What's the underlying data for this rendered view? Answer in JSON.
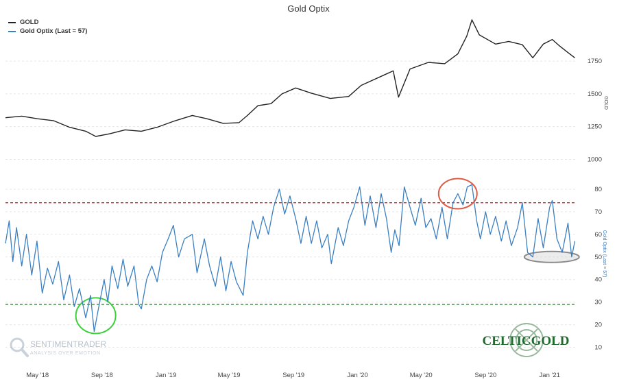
{
  "chart_data": {
    "type": "line",
    "title": "Gold Optix",
    "legend": [
      {
        "name": "GOLD",
        "color": "#222222"
      },
      {
        "name": "Gold Optix (Last = 57)",
        "color": "#3a7fc1"
      }
    ],
    "x_ticks": [
      "May '18",
      "Sep '18",
      "Jan '19",
      "May '19",
      "Sep '19",
      "Jan '20",
      "May '20",
      "Sep '20",
      "Jan '21"
    ],
    "x_range": [
      "2018-03-01",
      "2021-02-20"
    ],
    "panels": [
      {
        "name": "GOLD",
        "axis_title": "GOLD",
        "y_ticks": [
          1000,
          1250,
          1500,
          1750
        ],
        "ylim": [
          950,
          1850
        ],
        "series": {
          "name": "GOLD",
          "color": "#222222",
          "points": [
            [
              "2018-03-01",
              1318
            ],
            [
              "2018-04-01",
              1330
            ],
            [
              "2018-05-01",
              1310
            ],
            [
              "2018-06-01",
              1295
            ],
            [
              "2018-07-01",
              1245
            ],
            [
              "2018-08-01",
              1215
            ],
            [
              "2018-08-20",
              1175
            ],
            [
              "2018-09-15",
              1195
            ],
            [
              "2018-10-15",
              1225
            ],
            [
              "2018-11-15",
              1215
            ],
            [
              "2018-12-15",
              1245
            ],
            [
              "2019-01-15",
              1290
            ],
            [
              "2019-02-20",
              1335
            ],
            [
              "2019-03-20",
              1310
            ],
            [
              "2019-04-20",
              1275
            ],
            [
              "2019-05-20",
              1280
            ],
            [
              "2019-06-05",
              1335
            ],
            [
              "2019-06-25",
              1410
            ],
            [
              "2019-07-20",
              1425
            ],
            [
              "2019-08-10",
              1500
            ],
            [
              "2019-09-05",
              1545
            ],
            [
              "2019-10-05",
              1505
            ],
            [
              "2019-11-10",
              1465
            ],
            [
              "2019-12-15",
              1480
            ],
            [
              "2020-01-08",
              1565
            ],
            [
              "2020-02-24",
              1650
            ],
            [
              "2020-03-09",
              1675
            ],
            [
              "2020-03-19",
              1475
            ],
            [
              "2020-04-10",
              1690
            ],
            [
              "2020-05-15",
              1740
            ],
            [
              "2020-06-15",
              1730
            ],
            [
              "2020-07-10",
              1805
            ],
            [
              "2020-07-27",
              1940
            ],
            [
              "2020-08-06",
              2065
            ],
            [
              "2020-08-20",
              1950
            ],
            [
              "2020-09-20",
              1880
            ],
            [
              "2020-10-15",
              1900
            ],
            [
              "2020-11-10",
              1875
            ],
            [
              "2020-11-30",
              1775
            ],
            [
              "2020-12-20",
              1880
            ],
            [
              "2021-01-06",
              1915
            ],
            [
              "2021-01-20",
              1865
            ],
            [
              "2021-02-05",
              1815
            ],
            [
              "2021-02-18",
              1775
            ]
          ]
        }
      },
      {
        "name": "Gold Optix",
        "axis_title": "Gold Optix (Last = 57)",
        "y_ticks": [
          10,
          20,
          30,
          40,
          50,
          60,
          70,
          80
        ],
        "ylim": [
          5,
          90
        ],
        "reference_lines": [
          {
            "value": 74,
            "color": "#d22222"
          },
          {
            "value": 29,
            "color": "#2e8b2e"
          }
        ],
        "series": {
          "name": "Gold Optix (Last = 57)",
          "color": "#3a7fc1",
          "points": [
            [
              "2018-03-01",
              56
            ],
            [
              "2018-03-08",
              66
            ],
            [
              "2018-03-15",
              48
            ],
            [
              "2018-03-22",
              63
            ],
            [
              "2018-04-01",
              46
            ],
            [
              "2018-04-10",
              60
            ],
            [
              "2018-04-20",
              42
            ],
            [
              "2018-04-30",
              57
            ],
            [
              "2018-05-10",
              34
            ],
            [
              "2018-05-20",
              45
            ],
            [
              "2018-05-30",
              38
            ],
            [
              "2018-06-10",
              48
            ],
            [
              "2018-06-20",
              31
            ],
            [
              "2018-07-01",
              42
            ],
            [
              "2018-07-10",
              28
            ],
            [
              "2018-07-20",
              36
            ],
            [
              "2018-08-01",
              23
            ],
            [
              "2018-08-10",
              33
            ],
            [
              "2018-08-17",
              17
            ],
            [
              "2018-08-25",
              27
            ],
            [
              "2018-09-05",
              40
            ],
            [
              "2018-09-12",
              30
            ],
            [
              "2018-09-20",
              46
            ],
            [
              "2018-10-01",
              36
            ],
            [
              "2018-10-11",
              49
            ],
            [
              "2018-10-20",
              37
            ],
            [
              "2018-11-01",
              46
            ],
            [
              "2018-11-10",
              29
            ],
            [
              "2018-11-15",
              27
            ],
            [
              "2018-11-25",
              40
            ],
            [
              "2018-12-05",
              46
            ],
            [
              "2018-12-15",
              39
            ],
            [
              "2018-12-25",
              52
            ],
            [
              "2019-01-05",
              58
            ],
            [
              "2019-01-15",
              64
            ],
            [
              "2019-01-25",
              50
            ],
            [
              "2019-02-05",
              58
            ],
            [
              "2019-02-20",
              60
            ],
            [
              "2019-03-01",
              43
            ],
            [
              "2019-03-15",
              58
            ],
            [
              "2019-03-25",
              46
            ],
            [
              "2019-04-05",
              37
            ],
            [
              "2019-04-15",
              50
            ],
            [
              "2019-04-25",
              35
            ],
            [
              "2019-05-05",
              48
            ],
            [
              "2019-05-15",
              39
            ],
            [
              "2019-05-28",
              33
            ],
            [
              "2019-06-05",
              52
            ],
            [
              "2019-06-15",
              66
            ],
            [
              "2019-06-25",
              58
            ],
            [
              "2019-07-05",
              68
            ],
            [
              "2019-07-15",
              60
            ],
            [
              "2019-07-25",
              72
            ],
            [
              "2019-08-05",
              80
            ],
            [
              "2019-08-15",
              69
            ],
            [
              "2019-08-25",
              77
            ],
            [
              "2019-09-05",
              67
            ],
            [
              "2019-09-15",
              56
            ],
            [
              "2019-09-25",
              68
            ],
            [
              "2019-10-05",
              56
            ],
            [
              "2019-10-15",
              66
            ],
            [
              "2019-10-25",
              54
            ],
            [
              "2019-11-05",
              60
            ],
            [
              "2019-11-12",
              47
            ],
            [
              "2019-11-25",
              63
            ],
            [
              "2019-12-05",
              55
            ],
            [
              "2019-12-15",
              66
            ],
            [
              "2019-12-25",
              72
            ],
            [
              "2020-01-05",
              81
            ],
            [
              "2020-01-15",
              64
            ],
            [
              "2020-01-25",
              77
            ],
            [
              "2020-02-05",
              63
            ],
            [
              "2020-02-15",
              78
            ],
            [
              "2020-02-25",
              67
            ],
            [
              "2020-03-05",
              52
            ],
            [
              "2020-03-12",
              62
            ],
            [
              "2020-03-20",
              55
            ],
            [
              "2020-03-30",
              81
            ],
            [
              "2020-04-10",
              72
            ],
            [
              "2020-04-20",
              64
            ],
            [
              "2020-05-01",
              76
            ],
            [
              "2020-05-10",
              63
            ],
            [
              "2020-05-20",
              67
            ],
            [
              "2020-05-30",
              58
            ],
            [
              "2020-06-10",
              72
            ],
            [
              "2020-06-20",
              58
            ],
            [
              "2020-07-01",
              74
            ],
            [
              "2020-07-10",
              78
            ],
            [
              "2020-07-20",
              73
            ],
            [
              "2020-07-28",
              81
            ],
            [
              "2020-08-06",
              82
            ],
            [
              "2020-08-15",
              66
            ],
            [
              "2020-08-22",
              58
            ],
            [
              "2020-09-01",
              70
            ],
            [
              "2020-09-10",
              60
            ],
            [
              "2020-09-20",
              68
            ],
            [
              "2020-10-01",
              57
            ],
            [
              "2020-10-10",
              66
            ],
            [
              "2020-10-20",
              55
            ],
            [
              "2020-11-01",
              63
            ],
            [
              "2020-11-10",
              74
            ],
            [
              "2020-11-20",
              52
            ],
            [
              "2020-11-30",
              50
            ],
            [
              "2020-12-10",
              67
            ],
            [
              "2020-12-20",
              54
            ],
            [
              "2021-01-01",
              72
            ],
            [
              "2021-01-06",
              75
            ],
            [
              "2021-01-15",
              58
            ],
            [
              "2021-01-25",
              52
            ],
            [
              "2021-02-05",
              65
            ],
            [
              "2021-02-12",
              50
            ],
            [
              "2021-02-18",
              57
            ]
          ]
        }
      }
    ],
    "annotations": [
      {
        "shape": "ellipse",
        "color": "#e05a45",
        "at": [
          "2020-07-10",
          78
        ]
      },
      {
        "shape": "ellipse",
        "color": "#8a8a8a",
        "at": [
          "2021-01-05",
          50
        ]
      },
      {
        "shape": "ellipse",
        "color": "#3ad13a",
        "at": [
          "2018-08-20",
          24
        ]
      }
    ],
    "grid": true,
    "legend_position": "top-left"
  },
  "watermarks": {
    "sentiment_top": "SENTIMENTRADER",
    "sentiment_bottom": "ANALYSIS OVER EMOTION",
    "celtic": "CELTICGOLD"
  },
  "colors": {
    "gold_line": "#222222",
    "optix_line": "#3a7fc1",
    "upper_threshold": "#d22222",
    "lower_threshold": "#2e8b2e",
    "celtic_green": "#1f6b2e"
  }
}
